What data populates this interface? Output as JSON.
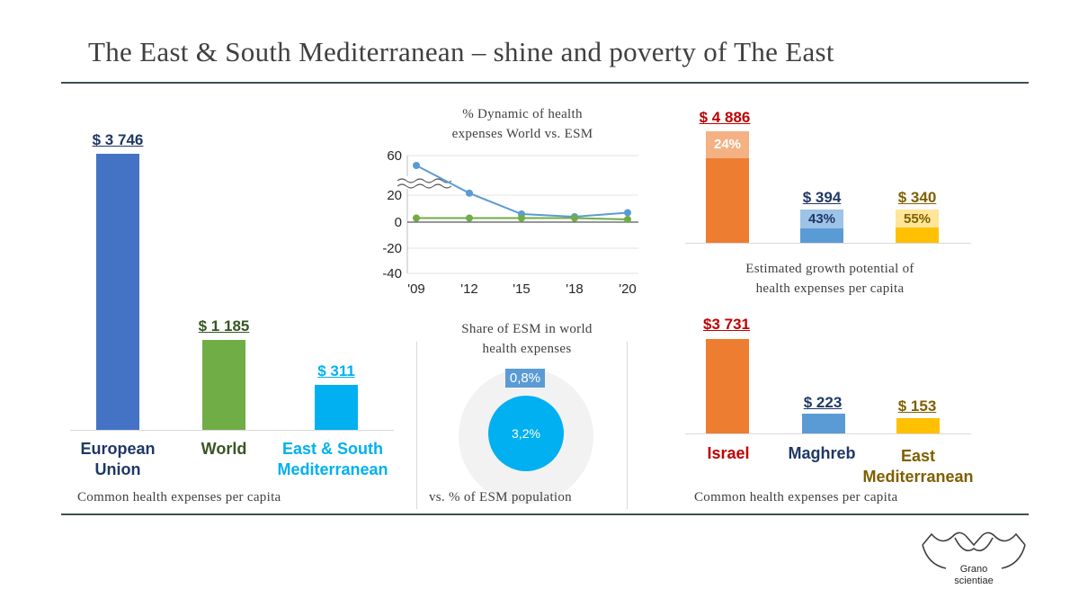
{
  "title": "The East & South Mediterranean – shine and poverty of The East",
  "colors": {
    "eu": "#4472c4",
    "world": "#70ad47",
    "esm": "#00b0f0",
    "orange": "#ed7d31",
    "blue": "#5b9bd5",
    "gold": "#ffc000",
    "darkred": "#c00000",
    "navy": "#1f3864",
    "darkgreen": "#375623",
    "olive": "#7f6000"
  },
  "chart_data": [
    {
      "type": "bar",
      "categories": [
        "European Union",
        "World",
        "East & South Mediterranean"
      ],
      "values": [
        3746,
        1185,
        311
      ],
      "value_labels": [
        "$ 3 746",
        "$ 1 185",
        "$ 311"
      ],
      "category_labels": [
        [
          "European",
          "Union"
        ],
        [
          "World"
        ],
        [
          "East & South",
          "Mediterranean"
        ]
      ],
      "caption": "Common health expenses per capita"
    },
    {
      "type": "line",
      "title_lines": [
        "% Dynamic of health",
        "expenses World vs. ESM"
      ],
      "x": [
        "'09",
        "'12",
        "'15",
        "'18",
        "'20"
      ],
      "y_ticks": [
        "60",
        "20",
        "0",
        "-20",
        "-40"
      ],
      "axis_break": true,
      "series": [
        {
          "values": [
            50,
            22,
            6,
            4,
            7
          ]
        },
        {
          "values": [
            3,
            3,
            3,
            3,
            2
          ]
        }
      ]
    },
    {
      "type": "pie",
      "title_lines": [
        "Share of ESM in world",
        "health expenses"
      ],
      "inner_label": "3,2%",
      "outer_label": "0,8%",
      "caption": "vs. % of ESM population"
    },
    {
      "type": "bar",
      "categories": [
        "Israel",
        "Maghreb",
        "East Mediterranean"
      ],
      "values": [
        4886,
        394,
        340
      ],
      "value_labels": [
        "$ 4 886",
        "$ 394",
        "$ 340"
      ],
      "growth_labels": [
        "24%",
        "43%",
        "55%"
      ],
      "growth_share": [
        0.24,
        0.43,
        0.55
      ],
      "caption_lines": [
        "Estimated growth potential of",
        "health expenses per capita"
      ]
    },
    {
      "type": "bar",
      "categories": [
        "Israel",
        "Maghreb",
        "East Mediterranean"
      ],
      "values": [
        3731,
        223,
        153
      ],
      "value_labels": [
        "$3 731",
        "$ 223",
        "$ 153"
      ],
      "category_labels": [
        [
          "Israel"
        ],
        [
          "Maghreb"
        ],
        [
          "East",
          "Mediterranean"
        ]
      ],
      "caption": "Common health expenses per capita"
    }
  ],
  "logo": {
    "line1": "Grano",
    "line2": "scientiae"
  }
}
